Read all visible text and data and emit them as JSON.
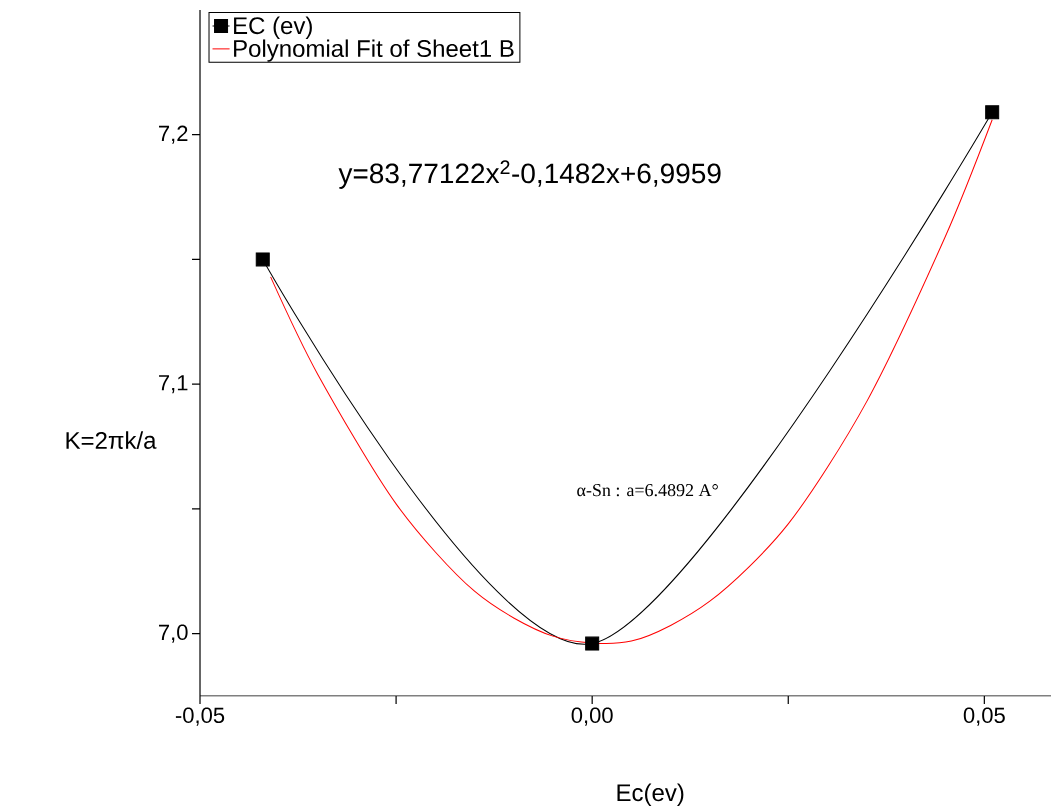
{
  "chart_data": {
    "type": "line",
    "xlabel": "Ec(ev)",
    "ylabel": "K=2πk/a",
    "xlim": [
      -0.05,
      0.0585
    ],
    "ylim": [
      6.975,
      7.25
    ],
    "xticks": [
      {
        "value": -0.05,
        "label": "-0,05"
      },
      {
        "value": -0.025,
        "label": null
      },
      {
        "value": 0,
        "label": "0,00"
      },
      {
        "value": 0.025,
        "label": null
      },
      {
        "value": 0.05,
        "label": "0,05"
      }
    ],
    "yticks": [
      {
        "value": 7.0,
        "label": "7,0"
      },
      {
        "value": 7.05,
        "label": null
      },
      {
        "value": 7.1,
        "label": "7,1"
      },
      {
        "value": 7.15,
        "label": null
      },
      {
        "value": 7.2,
        "label": "7,2"
      }
    ],
    "legend": "top left",
    "grid": false,
    "annotations": [
      "y=83,77122x$^{2}$-0,1482x+6,9959",
      "α-Sn : a=6.4892 A°"
    ],
    "series": [
      {
        "name": "EC (ev)",
        "color": "#000000",
        "marker": "square",
        "x": [
          -0.042,
          0,
          0.051
        ],
        "values": [
          7.15,
          6.996,
          7.209
        ]
      },
      {
        "name": "Polynomial Fit of Sheet1 B",
        "color": "#ff0000",
        "marker": "none",
        "x": [
          -0.041,
          -0.035,
          -0.025,
          -0.015,
          -0.005,
          0.005,
          0.015,
          0.025,
          0.035,
          0.045,
          0.051
        ],
        "values": [
          7.143,
          7.104,
          7.052,
          7.017,
          6.999,
          6.997,
          7.013,
          7.044,
          7.093,
          7.159,
          7.206
        ]
      }
    ]
  }
}
